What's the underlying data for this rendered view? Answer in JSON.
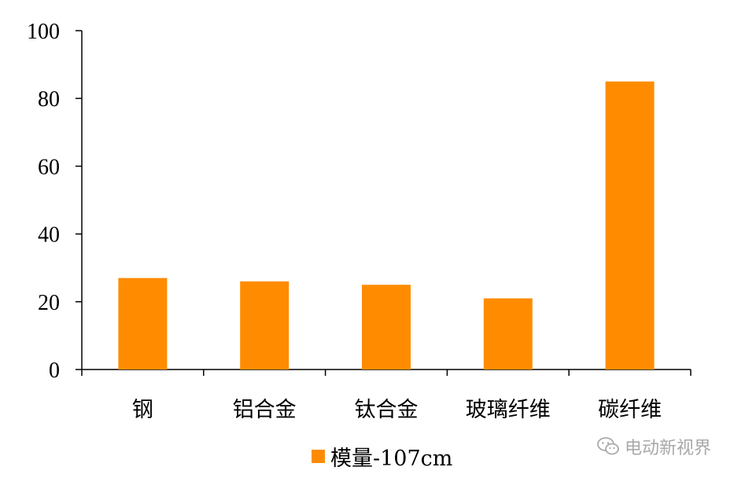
{
  "chart_data": {
    "type": "bar",
    "categories": [
      "钢",
      "铝合金",
      "钛合金",
      "玻璃纤维",
      "碳纤维"
    ],
    "series": [
      {
        "name": "模量-107cm",
        "values": [
          27,
          26,
          25,
          21,
          85
        ]
      }
    ],
    "ylim": [
      0,
      100
    ],
    "yticks": [
      0,
      20,
      40,
      60,
      80,
      100
    ],
    "grid": false,
    "legend_position": "bottom",
    "colors": {
      "bar": "#FF8C00",
      "axis": "#000000"
    }
  },
  "watermark": {
    "icon": "wechat-icon",
    "text": "电动新视界"
  }
}
